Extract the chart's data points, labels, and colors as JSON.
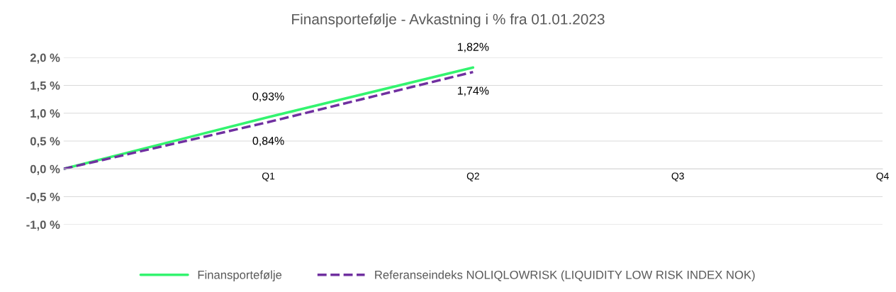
{
  "chart_data": {
    "type": "line",
    "title": "Finansportefølje - Avkastning i % fra 01.01.2023",
    "categories": [
      null,
      "Q1",
      "Q2",
      "Q3",
      "Q4"
    ],
    "series": [
      {
        "name": "Finansportefølje",
        "color": "#33f46f",
        "values": [
          0,
          0.93,
          1.82,
          null,
          null
        ],
        "value_labels": [
          null,
          "0,93%",
          "1,82%",
          null,
          null
        ],
        "line_style": "solid"
      },
      {
        "name": "Referanseindeks NOLIQLOWRISK (LIQUIDITY LOW RISK INDEX NOK)",
        "color": "#7030a0",
        "values": [
          0,
          0.84,
          1.74,
          null,
          null
        ],
        "value_labels": [
          null,
          "0,84%",
          "1,74%",
          null,
          null
        ],
        "line_style": "dashed"
      }
    ],
    "ylim": [
      -1.0,
      2.0
    ],
    "yticks": [
      {
        "value": -1.0,
        "label": "-1,0 %"
      },
      {
        "value": -0.5,
        "label": "-0,5 %"
      },
      {
        "value": 0,
        "label": "0,0 %"
      },
      {
        "value": 0.5,
        "label": "0,5 %"
      },
      {
        "value": 1.0,
        "label": "1,0 %"
      },
      {
        "value": 1.5,
        "label": "1,5 %"
      },
      {
        "value": 2.0,
        "label": "2,0 %"
      }
    ],
    "grid": "y",
    "legend": "bottom",
    "marker": "none"
  }
}
